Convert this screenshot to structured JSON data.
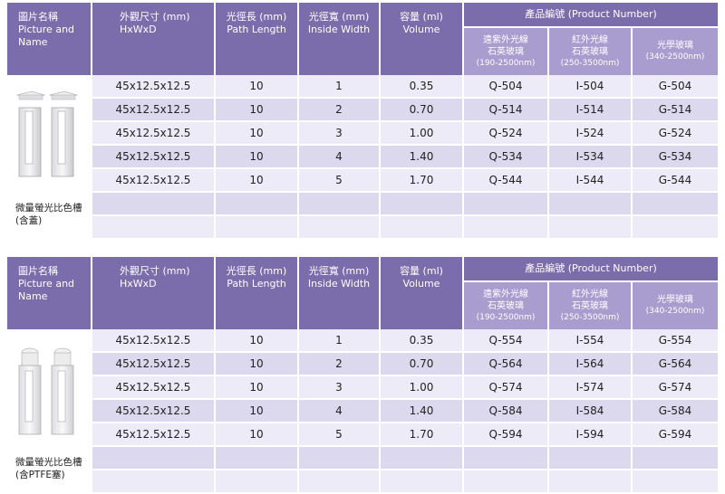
{
  "headers": {
    "picture_zh": "圖片名稱",
    "picture_en1": "Picture and",
    "picture_en2": "Name",
    "size_zh": "外觀尺寸 (mm)",
    "size_en": "HxWxD",
    "path_zh": "光徑長 (mm)",
    "path_en": "Path Length",
    "inside_zh": "光徑寬 (mm)",
    "inside_en": "Inside Width",
    "volume_zh": "容量 (ml)",
    "volume_en": "Volume",
    "product_group": "產品編號 (Product Number)",
    "col_q_zh1": "遠紫外光線",
    "col_q_zh2": "石英玻璃",
    "col_q_range": "(190-2500nm)",
    "col_i_zh1": "紅外光線",
    "col_i_zh2": "石英玻璃",
    "col_i_range": "(250-3500nm)",
    "col_g_zh": "光學玻璃",
    "col_g_range": "(340-2500nm)"
  },
  "table1": {
    "caption1": "微量螢光比色槽",
    "caption2": "(含蓋)",
    "rows": [
      {
        "size": "45x12.5x12.5",
        "path": "10",
        "width": "1",
        "volume": "0.35",
        "q": "Q-504",
        "i": "I-504",
        "g": "G-504"
      },
      {
        "size": "45x12.5x12.5",
        "path": "10",
        "width": "2",
        "volume": "0.70",
        "q": "Q-514",
        "i": "I-514",
        "g": "G-514"
      },
      {
        "size": "45x12.5x12.5",
        "path": "10",
        "width": "3",
        "volume": "1.00",
        "q": "Q-524",
        "i": "I-524",
        "g": "G-524"
      },
      {
        "size": "45x12.5x12.5",
        "path": "10",
        "width": "4",
        "volume": "1.40",
        "q": "Q-534",
        "i": "I-534",
        "g": "G-534"
      },
      {
        "size": "45x12.5x12.5",
        "path": "10",
        "width": "5",
        "volume": "1.70",
        "q": "Q-544",
        "i": "I-544",
        "g": "G-544"
      }
    ]
  },
  "table2": {
    "caption1": "微量螢光比色槽",
    "caption2": "(含PTFE塞)",
    "rows": [
      {
        "size": "45x12.5x12.5",
        "path": "10",
        "width": "1",
        "volume": "0.35",
        "q": "Q-554",
        "i": "I-554",
        "g": "G-554"
      },
      {
        "size": "45x12.5x12.5",
        "path": "10",
        "width": "2",
        "volume": "0.70",
        "q": "Q-564",
        "i": "I-564",
        "g": "G-564"
      },
      {
        "size": "45x12.5x12.5",
        "path": "10",
        "width": "3",
        "volume": "1.00",
        "q": "Q-574",
        "i": "I-574",
        "g": "G-574"
      },
      {
        "size": "45x12.5x12.5",
        "path": "10",
        "width": "4",
        "volume": "1.40",
        "q": "Q-584",
        "i": "I-584",
        "g": "G-584"
      },
      {
        "size": "45x12.5x12.5",
        "path": "10",
        "width": "5",
        "volume": "1.70",
        "q": "Q-594",
        "i": "I-594",
        "g": "G-594"
      }
    ]
  },
  "colors": {
    "header": "#7b6cab",
    "subheader": "#a99ccf",
    "row_light": "#ecebf7",
    "row_dark": "#dcd9ef"
  }
}
